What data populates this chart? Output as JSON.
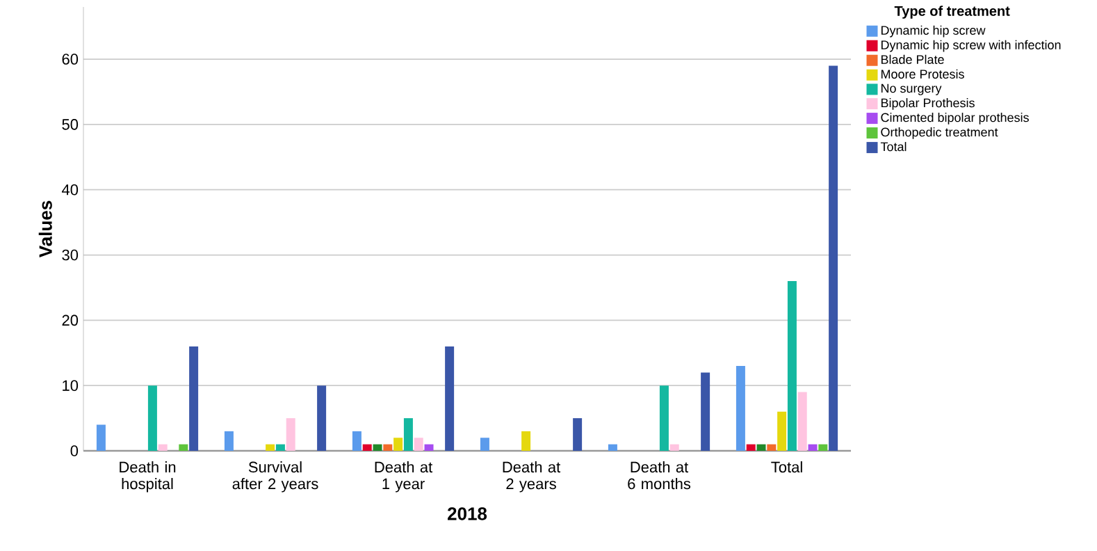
{
  "chart_data": {
    "type": "bar",
    "xlabel": "2018",
    "ylabel": "Values",
    "legend_title": "Type of treatment",
    "categories": [
      "Death in hospital",
      "Survival after 2 years",
      "Death at 1 year",
      "Death at 2 years",
      "Death at 6 months",
      "Total"
    ],
    "series": [
      {
        "name": "Dynamic hip screw",
        "color": "#5b9bec",
        "values": [
          4,
          3,
          3,
          2,
          1,
          13
        ]
      },
      {
        "name": "Dynamic hip screw with infection",
        "color": "#e0002b",
        "values": [
          0,
          0,
          1,
          0,
          0,
          1
        ]
      },
      {
        "color": "#22892a",
        "values": [
          0,
          0,
          1,
          0,
          0,
          1
        ]
      },
      {
        "name": "Blade Plate",
        "color": "#f26b2b",
        "values": [
          0,
          0,
          1,
          0,
          0,
          1
        ]
      },
      {
        "name": "Moore Protesis",
        "color": "#e5d80e",
        "values": [
          0,
          1,
          2,
          3,
          0,
          6
        ]
      },
      {
        "name": "No surgery",
        "color": "#14b8a0",
        "values": [
          10,
          1,
          5,
          0,
          10,
          26
        ]
      },
      {
        "name": "Bipolar Prothesis",
        "color": "#ffc4e0",
        "values": [
          1,
          5,
          2,
          0,
          1,
          9
        ]
      },
      {
        "name": "Cimented bipolar prothesis",
        "color": "#a64cf0",
        "values": [
          0,
          0,
          1,
          0,
          0,
          1
        ]
      },
      {
        "name": "Orthopedic treatment",
        "color": "#5ec43c",
        "values": [
          1,
          0,
          0,
          0,
          0,
          1
        ]
      },
      {
        "name": "Total",
        "color": "#3a56a8",
        "values": [
          16,
          10,
          16,
          5,
          12,
          59
        ]
      }
    ],
    "ylim": [
      0,
      68
    ],
    "yticks": [
      0,
      10,
      20,
      30,
      40,
      50,
      60
    ],
    "grid": "y",
    "legend": "right"
  }
}
